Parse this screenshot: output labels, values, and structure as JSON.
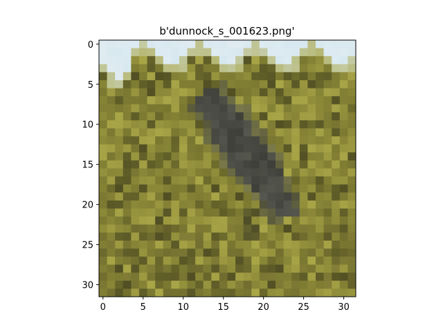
{
  "chart_data": {
    "type": "image",
    "title": "b'dunnock_s_001623.png'",
    "image_size": [
      32,
      32
    ],
    "xlim": [
      -0.5,
      31.5
    ],
    "ylim": [
      31.5,
      -0.5
    ],
    "x_ticks": [
      0,
      5,
      10,
      15,
      20,
      25,
      30
    ],
    "y_ticks": [
      0,
      5,
      10,
      15,
      20,
      25,
      30
    ],
    "depicts": "pixelated photo of a dunnock bird perched in yellow-green grass under a pale blue sky",
    "palette": {
      "sky": "#d8e8f0",
      "grass_light": "#a9a648",
      "grass_mid": "#8f8c3a",
      "grass_dark": "#6e6c2c",
      "bird_dark": "#3f403a",
      "bird_mid": "#55574e",
      "bird_light": "#c9c5a2"
    }
  }
}
